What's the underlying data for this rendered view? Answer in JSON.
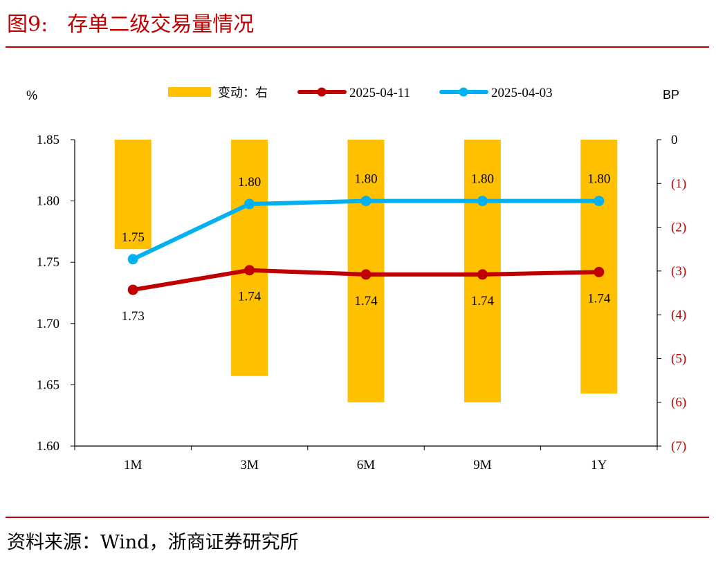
{
  "figure": {
    "number": "图9:",
    "title": "存单二级交易量情况"
  },
  "source": "资料来源：Wind，浙商证券研究所",
  "colors": {
    "accent": "#c00000",
    "bar": "#ffc000",
    "series_0411": "#c00000",
    "series_0403": "#00b0f0",
    "right_axis_text": "#c00000"
  },
  "chart_data": {
    "type": "bar+line",
    "categories": [
      "1M",
      "3M",
      "6M",
      "9M",
      "1Y"
    ],
    "left_axis": {
      "unit": "%",
      "ylim": [
        1.6,
        1.85
      ],
      "ticks": [
        "1.60",
        "1.65",
        "1.70",
        "1.75",
        "1.80",
        "1.85"
      ],
      "tick_values": [
        1.6,
        1.65,
        1.7,
        1.75,
        1.8,
        1.85
      ]
    },
    "right_axis": {
      "unit": "BP",
      "ylim": [
        -7,
        0
      ],
      "ticks": [
        "0",
        "(1)",
        "(2)",
        "(3)",
        "(4)",
        "(5)",
        "(6)",
        "(7)"
      ],
      "tick_values": [
        0,
        -1,
        -2,
        -3,
        -4,
        -5,
        -6,
        -7
      ]
    },
    "bars": {
      "name": "变动：右",
      "axis": "right",
      "values": [
        -2.5,
        -5.4,
        -6.0,
        -6.0,
        -5.8
      ]
    },
    "series": [
      {
        "name": "2025-04-11",
        "axis": "left",
        "values": [
          1.7275,
          1.7435,
          1.74,
          1.74,
          1.742
        ],
        "labels": [
          "1.73",
          "1.74",
          "1.74",
          "1.74",
          "1.74"
        ],
        "label_position": "below"
      },
      {
        "name": "2025-04-03",
        "axis": "left",
        "values": [
          1.7525,
          1.7975,
          1.8,
          1.8,
          1.8
        ],
        "labels": [
          "1.75",
          "1.80",
          "1.80",
          "1.80",
          "1.80"
        ],
        "label_position": "above"
      }
    ],
    "legend_position": "top-center",
    "grid": false
  }
}
